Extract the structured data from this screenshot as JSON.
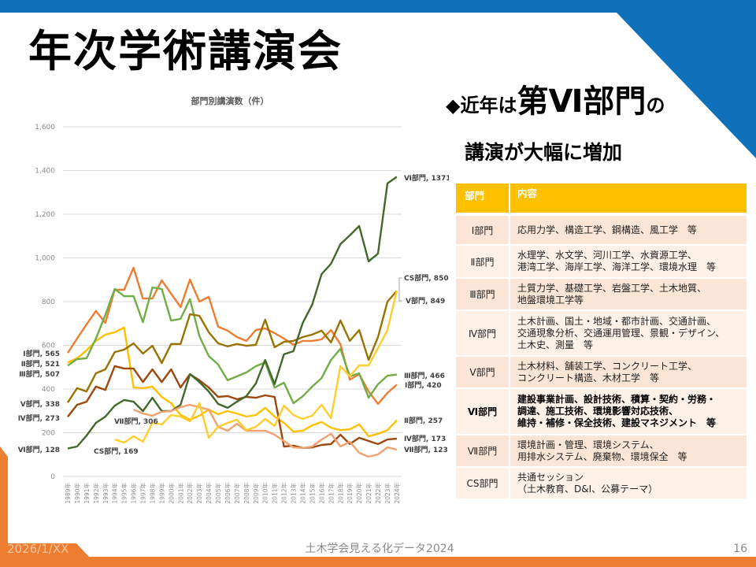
{
  "slide": {
    "title": "年次学術講演会",
    "headline": {
      "bullet": "◆",
      "pre": "近年は",
      "emphasis": "第Ⅵ部門",
      "post": "の",
      "line2": "講演が大幅に増加"
    },
    "footer": {
      "date": "2026/1/XX",
      "source": "土木学会見える化データ2024",
      "page": "16"
    },
    "colors": {
      "blue": "#0F71B9",
      "orange": "#ED7D31",
      "table_header": "#FFC000",
      "row_peach": "#FBE5D6",
      "row_light": "#FDF1E8"
    }
  },
  "table": {
    "headers": [
      "部門",
      "内容"
    ],
    "rows": [
      {
        "division": "Ⅰ部門",
        "content": [
          "応用力学、構造工学、鋼構造、風工学　等"
        ]
      },
      {
        "division": "Ⅱ部門",
        "content": [
          "水理学、水文学、河川工学、水資源工学、",
          "港湾工学、海岸工学、海洋工学、環境水理　等"
        ]
      },
      {
        "division": "Ⅲ部門",
        "content": [
          "土質力学、基礎工学、岩盤工学、土木地質、",
          "地盤環境工学等"
        ]
      },
      {
        "division": "Ⅳ部門",
        "content": [
          "土木計画、国土・地域・都市計画、交通計画、",
          "交通現象分析、交通運用管理、景観・デザイン、",
          "土木史、測量　等"
        ]
      },
      {
        "division": "Ⅴ部門",
        "content": [
          "土木材料、舗装工学、コンクリート工学、",
          "コンクリート構造、木材工学　等"
        ]
      },
      {
        "division": "Ⅵ部門",
        "content": [
          "建設事業計画、設計技術、積算・契約・労務・",
          "調達、施工技術、環境影響対応技術、",
          "維持・補修・保全技術、建設マネジメント　等"
        ]
      },
      {
        "division": "Ⅶ部門",
        "content": [
          "環境計画・管理、環境システム、",
          "用排水システム、廃棄物、環境保全　等"
        ]
      },
      {
        "division": "CS部門",
        "content": [
          "共通セッション",
          "（土木教育、D&I、公募テーマ）"
        ]
      }
    ]
  },
  "chart_data": {
    "type": "line",
    "title": "部門別講演数（件）",
    "xlabel": "",
    "ylabel": "",
    "ylim": [
      0,
      1600
    ],
    "y_ticks": [
      0,
      200,
      400,
      600,
      800,
      1000,
      1200,
      1400,
      1600
    ],
    "y_tick_labels": [
      "0",
      "200",
      "400",
      "600",
      "800",
      "1,000",
      "1,200",
      "1,400",
      "1,600"
    ],
    "grid": true,
    "legend": "none",
    "categories": [
      "1989年",
      "1990年",
      "1991年",
      "1992年",
      "1993年",
      "1994年",
      "1995年",
      "1996年",
      "1997年",
      "1998年",
      "1999年",
      "2000年",
      "2001年",
      "2002年",
      "2003年",
      "2004年",
      "2005年",
      "2006年",
      "2007年",
      "2008年",
      "2009年",
      "2010年",
      "2011年",
      "2012年",
      "2013年",
      "2014年",
      "2015年",
      "2016年",
      "2017年",
      "2018年",
      "2019年",
      "2020年",
      "2021年",
      "2022年",
      "2023年",
      "2024年"
    ],
    "series": [
      {
        "name": "Ⅰ部門",
        "color": "#ED7D31",
        "start_label": "Ⅰ部門, 565",
        "end_label": "Ⅰ部門, 420",
        "values": [
          565,
          631,
          696,
          757,
          703,
          854,
          854,
          955,
          814,
          814,
          897,
          836,
          775,
          901,
          800,
          822,
          685,
          667,
          638,
          620,
          670,
          677,
          656,
          631,
          602,
          620,
          620,
          627,
          670,
          605,
          443,
          468,
          389,
          332,
          382,
          420
        ]
      },
      {
        "name": "Ⅱ部門",
        "color": "#FFC000",
        "start_label": "Ⅱ部門, 521",
        "end_label": "Ⅱ部門, 257",
        "values": [
          521,
          541,
          577,
          620,
          649,
          660,
          681,
          407,
          404,
          411,
          364,
          335,
          281,
          260,
          278,
          306,
          285,
          299,
          288,
          274,
          281,
          314,
          274,
          245,
          205,
          209,
          234,
          249,
          223,
          212,
          216,
          238,
          184,
          195,
          212,
          257
        ]
      },
      {
        "name": "Ⅲ部門",
        "color": "#70AD47",
        "start_label": "Ⅲ部門, 507",
        "end_label": "Ⅲ部門, 466",
        "values": [
          507,
          537,
          541,
          631,
          739,
          858,
          825,
          825,
          706,
          865,
          858,
          713,
          721,
          811,
          642,
          551,
          512,
          440,
          458,
          476,
          504,
          522,
          407,
          429,
          335,
          367,
          411,
          450,
          533,
          584,
          458,
          472,
          360,
          422,
          461,
          466
        ]
      },
      {
        "name": "Ⅳ部門",
        "color": "#9E480E",
        "start_label": "Ⅳ部門, 273",
        "end_label": "Ⅳ部門, 173",
        "values": [
          273,
          328,
          342,
          411,
          396,
          505,
          494,
          494,
          432,
          490,
          432,
          490,
          407,
          468,
          440,
          407,
          364,
          368,
          353,
          364,
          360,
          371,
          364,
          137,
          141,
          130,
          133,
          144,
          148,
          191,
          148,
          177,
          162,
          148,
          169,
          173
        ]
      },
      {
        "name": "Ⅴ部門",
        "color": "#997300",
        "start_label": "Ⅴ部門, 338",
        "end_label": "Ⅴ部門, 849",
        "values": [
          338,
          404,
          389,
          472,
          490,
          569,
          580,
          609,
          562,
          598,
          519,
          606,
          606,
          742,
          735,
          660,
          609,
          595,
          606,
          598,
          602,
          717,
          591,
          616,
          620,
          638,
          649,
          667,
          613,
          714,
          620,
          670,
          533,
          638,
          800,
          849
        ]
      },
      {
        "name": "Ⅵ部門",
        "color": "#43682B",
        "start_label": "Ⅵ部門, 128",
        "end_label": "Ⅵ部門, 1371",
        "values": [
          128,
          137,
          187,
          245,
          274,
          324,
          350,
          342,
          299,
          360,
          299,
          299,
          328,
          468,
          432,
          389,
          332,
          314,
          342,
          368,
          425,
          533,
          422,
          559,
          573,
          703,
          786,
          926,
          973,
          1063,
          1103,
          1146,
          984,
          1020,
          1341,
          1371
        ]
      },
      {
        "name": "Ⅶ部門",
        "color": "#F1A06F",
        "start_label": "Ⅶ部門, 306",
        "end_label": "Ⅶ部門, 123",
        "values": [
          null,
          null,
          null,
          null,
          null,
          null,
          null,
          306,
          288,
          278,
          296,
          299,
          317,
          328,
          317,
          306,
          227,
          209,
          241,
          209,
          209,
          209,
          191,
          162,
          133,
          130,
          137,
          169,
          195,
          137,
          159,
          108,
          90,
          101,
          133,
          123
        ]
      },
      {
        "name": "CS部門",
        "color": "#FFCD2E",
        "start_label": "CS部門, 169",
        "end_label": "CS部門, 850",
        "values": [
          null,
          null,
          null,
          null,
          null,
          169,
          155,
          184,
          159,
          245,
          238,
          281,
          274,
          252,
          335,
          177,
          227,
          245,
          260,
          212,
          227,
          263,
          231,
          324,
          281,
          263,
          278,
          328,
          267,
          505,
          458,
          508,
          508,
          587,
          670,
          850
        ]
      }
    ]
  }
}
